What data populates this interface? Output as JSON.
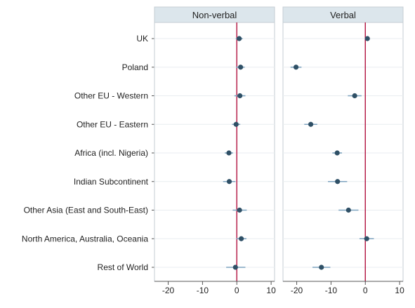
{
  "chart_data": {
    "type": "scatter",
    "subtype": "dot-and-whisker (coefficient plot), two facets",
    "categories": [
      "UK",
      "Poland",
      "Other EU - Western",
      "Other EU - Eastern",
      "Africa (incl. Nigeria)",
      "Indian Subcontinent",
      "Other Asia (East and South-East)",
      "North America, Australia, Oceania",
      "Rest of World"
    ],
    "panels": [
      {
        "title": "Non-verbal",
        "points": [
          {
            "estimate": 0.7,
            "low": -0.3,
            "high": 1.7
          },
          {
            "estimate": 1.1,
            "low": -0.2,
            "high": 2.3
          },
          {
            "estimate": 0.9,
            "low": -0.7,
            "high": 2.5
          },
          {
            "estimate": -0.2,
            "low": -1.4,
            "high": 1.0
          },
          {
            "estimate": -2.3,
            "low": -3.5,
            "high": -1.1
          },
          {
            "estimate": -2.2,
            "low": -4.0,
            "high": -0.4
          },
          {
            "estimate": 0.8,
            "low": -1.2,
            "high": 2.9
          },
          {
            "estimate": 1.3,
            "low": -0.1,
            "high": 2.8
          },
          {
            "estimate": -0.4,
            "low": -3.1,
            "high": 2.5
          }
        ]
      },
      {
        "title": "Verbal",
        "points": [
          {
            "estimate": 0.6,
            "low": -0.1,
            "high": 1.3
          },
          {
            "estimate": -20.2,
            "low": -21.8,
            "high": -18.6
          },
          {
            "estimate": -3.1,
            "low": -5.1,
            "high": -1.1
          },
          {
            "estimate": -15.9,
            "low": -17.8,
            "high": -14.0
          },
          {
            "estimate": -8.2,
            "low": -9.6,
            "high": -6.8
          },
          {
            "estimate": -8.1,
            "low": -10.9,
            "high": -5.3
          },
          {
            "estimate": -4.9,
            "low": -7.8,
            "high": -2.0
          },
          {
            "estimate": 0.4,
            "low": -1.7,
            "high": 2.5
          },
          {
            "estimate": -12.8,
            "low": -15.4,
            "high": -10.2
          }
        ]
      }
    ],
    "xticks": [
      "-20",
      "-10",
      "0",
      "10"
    ],
    "xlim": [
      -24,
      11
    ],
    "reference_line": 0,
    "grid": true,
    "colors": {
      "strip": "#dce6ec",
      "panel_border": "#c4cdd3",
      "grid": "#e9edf0",
      "reference": "#b7204a",
      "marker": "#2f5066",
      "whisker": "#7da3bf",
      "axis": "#555555"
    }
  }
}
